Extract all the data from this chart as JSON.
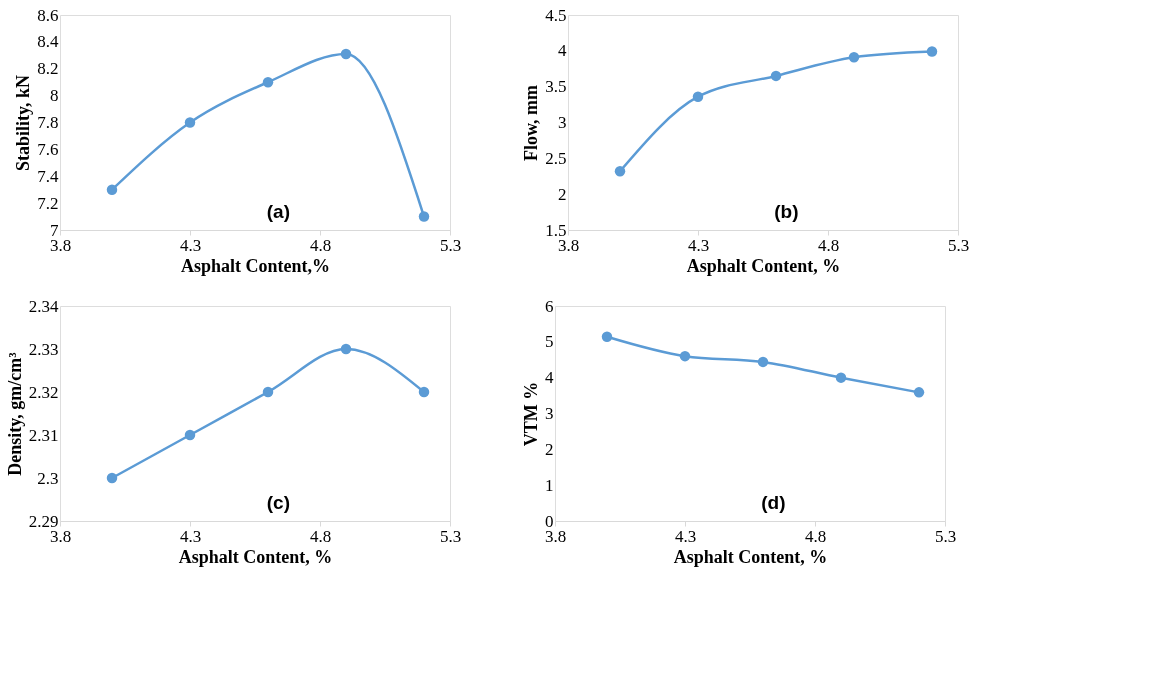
{
  "chart_data": [
    {
      "type": "line",
      "x": [
        4.0,
        4.3,
        4.6,
        4.9,
        5.2
      ],
      "series": [
        {
          "color": "#5b9bd5",
          "values": [
            7.3,
            7.8,
            8.1,
            8.31,
            7.1
          ]
        }
      ],
      "xlim": [
        3.8,
        5.3
      ],
      "xticks": [
        3.8,
        4.3,
        4.8,
        5.3
      ],
      "ylim": [
        7,
        8.6
      ],
      "yticks": [
        7,
        7.2,
        7.4,
        7.6,
        7.8,
        8,
        8.2,
        8.4,
        8.6
      ],
      "xlabel": "Asphalt Content,%",
      "ylabel": "Stability, kN",
      "annotations": [
        "(a)"
      ],
      "marker": "circle"
    },
    {
      "type": "line",
      "x": [
        4.0,
        4.3,
        4.6,
        4.9,
        5.2
      ],
      "series": [
        {
          "color": "#5b9bd5",
          "values": [
            2.32,
            3.36,
            3.65,
            3.91,
            3.99
          ]
        }
      ],
      "xlim": [
        3.8,
        5.3
      ],
      "xticks": [
        3.8,
        4.3,
        4.8,
        5.3
      ],
      "ylim": [
        1.5,
        4.5
      ],
      "yticks": [
        1.5,
        2,
        2.5,
        3,
        3.5,
        4,
        4.5
      ],
      "xlabel": "Asphalt Content, %",
      "ylabel": "Flow, mm",
      "annotations": [
        "(b)"
      ],
      "marker": "circle"
    },
    {
      "type": "line",
      "x": [
        4.0,
        4.3,
        4.6,
        4.9,
        5.2
      ],
      "series": [
        {
          "color": "#5b9bd5",
          "values": [
            2.3,
            2.31,
            2.32,
            2.33,
            2.32
          ]
        }
      ],
      "xlim": [
        3.8,
        5.3
      ],
      "xticks": [
        3.8,
        4.3,
        4.8,
        5.3
      ],
      "ylim": [
        2.29,
        2.34
      ],
      "yticks": [
        2.29,
        2.3,
        2.31,
        2.32,
        2.33,
        2.34
      ],
      "xlabel": "Asphalt Content, %",
      "ylabel": "Density, gm/cm³",
      "annotations": [
        "(c)"
      ],
      "marker": "circle"
    },
    {
      "type": "line",
      "x": [
        4.0,
        4.3,
        4.6,
        4.9,
        5.2
      ],
      "series": [
        {
          "color": "#5b9bd5",
          "values": [
            5.14,
            4.6,
            4.44,
            4.0,
            3.59
          ]
        }
      ],
      "xlim": [
        3.8,
        5.3
      ],
      "xticks": [
        3.8,
        4.3,
        4.8,
        5.3
      ],
      "ylim": [
        0,
        6
      ],
      "yticks": [
        0,
        1,
        2,
        3,
        4,
        5,
        6
      ],
      "xlabel": "Asphalt Content, %",
      "ylabel": "VTM %",
      "annotations": [
        "(d)"
      ],
      "marker": "circle"
    }
  ]
}
